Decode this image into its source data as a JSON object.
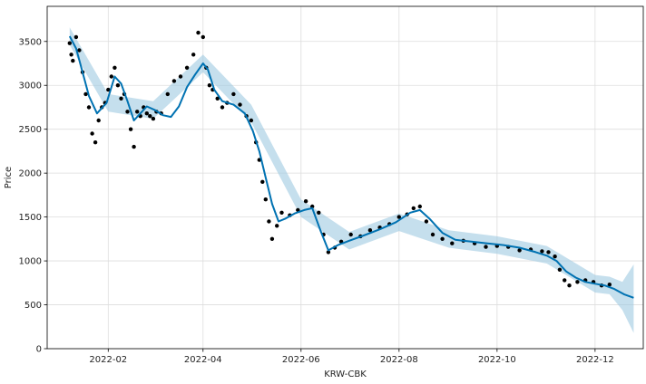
{
  "chart_data": {
    "type": "line",
    "title": "",
    "xlabel": "KRW-CBK",
    "ylabel": "Price",
    "grid": true,
    "legend": "none",
    "xlim": [
      "2021-12-25",
      "2022-12-31"
    ],
    "ylim": [
      0,
      3900
    ],
    "x_ticks": [
      "2022-02-01",
      "2022-04-01",
      "2022-06-01",
      "2022-08-01",
      "2022-10-01",
      "2022-12-01"
    ],
    "x_tick_labels": [
      "2022-02",
      "2022-04",
      "2022-06",
      "2022-08",
      "2022-10",
      "2022-12"
    ],
    "y_ticks": [
      0,
      500,
      1000,
      1500,
      2000,
      2500,
      3000,
      3500
    ],
    "y_tick_labels": [
      "0",
      "500",
      "1000",
      "1500",
      "2000",
      "2500",
      "3000",
      "3500"
    ],
    "colors": {
      "observed": "#000000",
      "forecast": "#0072b2",
      "interval": "#9ecae1",
      "grid": "#dddddd"
    },
    "series": [
      {
        "role": "observed",
        "x": [
          "2022-01-08",
          "2022-01-09",
          "2022-01-10",
          "2022-01-12",
          "2022-01-14",
          "2022-01-16",
          "2022-01-18",
          "2022-01-20",
          "2022-01-22",
          "2022-01-24",
          "2022-01-26",
          "2022-01-28",
          "2022-01-30",
          "2022-02-01",
          "2022-02-03",
          "2022-02-05",
          "2022-02-07",
          "2022-02-09",
          "2022-02-11",
          "2022-02-13",
          "2022-02-15",
          "2022-02-17",
          "2022-02-19",
          "2022-02-21",
          "2022-02-23",
          "2022-02-25",
          "2022-02-27",
          "2022-03-01",
          "2022-03-03",
          "2022-03-06",
          "2022-03-10",
          "2022-03-14",
          "2022-03-18",
          "2022-03-22",
          "2022-03-26",
          "2022-03-29",
          "2022-04-01",
          "2022-04-03",
          "2022-04-05",
          "2022-04-07",
          "2022-04-10",
          "2022-04-13",
          "2022-04-16",
          "2022-04-20",
          "2022-04-24",
          "2022-04-28",
          "2022-05-01",
          "2022-05-04",
          "2022-05-06",
          "2022-05-08",
          "2022-05-10",
          "2022-05-12",
          "2022-05-14",
          "2022-05-17",
          "2022-05-20",
          "2022-05-25",
          "2022-05-30",
          "2022-06-04",
          "2022-06-08",
          "2022-06-12",
          "2022-06-15",
          "2022-06-18",
          "2022-06-22",
          "2022-06-26",
          "2022-07-02",
          "2022-07-08",
          "2022-07-14",
          "2022-07-20",
          "2022-07-26",
          "2022-08-01",
          "2022-08-06",
          "2022-08-10",
          "2022-08-14",
          "2022-08-18",
          "2022-08-22",
          "2022-08-28",
          "2022-09-03",
          "2022-09-10",
          "2022-09-17",
          "2022-09-24",
          "2022-10-01",
          "2022-10-08",
          "2022-10-15",
          "2022-10-22",
          "2022-10-29",
          "2022-11-02",
          "2022-11-06",
          "2022-11-09",
          "2022-11-12",
          "2022-11-15",
          "2022-11-20",
          "2022-11-25",
          "2022-11-30",
          "2022-12-05",
          "2022-12-10"
        ],
        "y": [
          3480,
          3350,
          3280,
          3550,
          3400,
          3150,
          2900,
          2750,
          2450,
          2350,
          2600,
          2750,
          2800,
          2950,
          3100,
          3200,
          3000,
          2850,
          2900,
          2700,
          2500,
          2300,
          2700,
          2650,
          2750,
          2680,
          2650,
          2620,
          2700,
          2680,
          2900,
          3050,
          3100,
          3200,
          3350,
          3600,
          3550,
          3200,
          3000,
          2950,
          2850,
          2750,
          2800,
          2900,
          2780,
          2650,
          2600,
          2350,
          2150,
          1900,
          1700,
          1450,
          1250,
          1400,
          1550,
          1520,
          1580,
          1680,
          1620,
          1550,
          1300,
          1100,
          1150,
          1220,
          1300,
          1280,
          1350,
          1380,
          1420,
          1500,
          1530,
          1600,
          1620,
          1450,
          1300,
          1250,
          1200,
          1230,
          1200,
          1160,
          1170,
          1160,
          1120,
          1130,
          1110,
          1100,
          1050,
          900,
          780,
          720,
          760,
          780,
          760,
          720,
          730
        ]
      },
      {
        "role": "forecast",
        "x": [
          "2022-01-08",
          "2022-01-12",
          "2022-01-16",
          "2022-01-20",
          "2022-01-25",
          "2022-01-31",
          "2022-02-05",
          "2022-02-09",
          "2022-02-13",
          "2022-02-17",
          "2022-02-21",
          "2022-02-25",
          "2022-03-02",
          "2022-03-07",
          "2022-03-12",
          "2022-03-17",
          "2022-03-22",
          "2022-03-27",
          "2022-04-01",
          "2022-04-04",
          "2022-04-08",
          "2022-04-13",
          "2022-04-20",
          "2022-04-27",
          "2022-05-02",
          "2022-05-06",
          "2022-05-10",
          "2022-05-14",
          "2022-05-18",
          "2022-05-22",
          "2022-05-28",
          "2022-06-03",
          "2022-06-08",
          "2022-06-13",
          "2022-06-18",
          "2022-06-24",
          "2022-07-01",
          "2022-07-10",
          "2022-07-20",
          "2022-07-30",
          "2022-08-08",
          "2022-08-14",
          "2022-08-20",
          "2022-08-28",
          "2022-09-05",
          "2022-09-15",
          "2022-09-25",
          "2022-10-05",
          "2022-10-15",
          "2022-10-25",
          "2022-11-01",
          "2022-11-07",
          "2022-11-13",
          "2022-11-19",
          "2022-11-25",
          "2022-12-01",
          "2022-12-07",
          "2022-12-13",
          "2022-12-19",
          "2022-12-25"
        ],
        "y": [
          3560,
          3420,
          3150,
          2880,
          2680,
          2800,
          3100,
          3020,
          2820,
          2600,
          2680,
          2760,
          2720,
          2660,
          2640,
          2760,
          2980,
          3120,
          3250,
          3180,
          2950,
          2820,
          2780,
          2680,
          2480,
          2250,
          1950,
          1650,
          1450,
          1480,
          1540,
          1580,
          1600,
          1350,
          1120,
          1180,
          1230,
          1290,
          1360,
          1440,
          1550,
          1580,
          1480,
          1320,
          1240,
          1220,
          1200,
          1180,
          1150,
          1100,
          1060,
          1000,
          880,
          810,
          760,
          740,
          720,
          680,
          620,
          580
        ]
      },
      {
        "role": "uncertainty_interval",
        "x": [
          "2022-01-08",
          "2022-02-01",
          "2022-03-01",
          "2022-04-01",
          "2022-05-01",
          "2022-06-01",
          "2022-07-01",
          "2022-08-01",
          "2022-09-01",
          "2022-10-01",
          "2022-11-01",
          "2022-12-01",
          "2022-12-10",
          "2022-12-18",
          "2022-12-25"
        ],
        "lower": [
          3460,
          2700,
          2620,
          3150,
          2580,
          1500,
          1130,
          1340,
          1150,
          1080,
          970,
          640,
          620,
          440,
          180
        ],
        "upper": [
          3660,
          2900,
          2820,
          3350,
          2780,
          1700,
          1330,
          1540,
          1350,
          1280,
          1170,
          840,
          820,
          760,
          960
        ]
      }
    ]
  }
}
